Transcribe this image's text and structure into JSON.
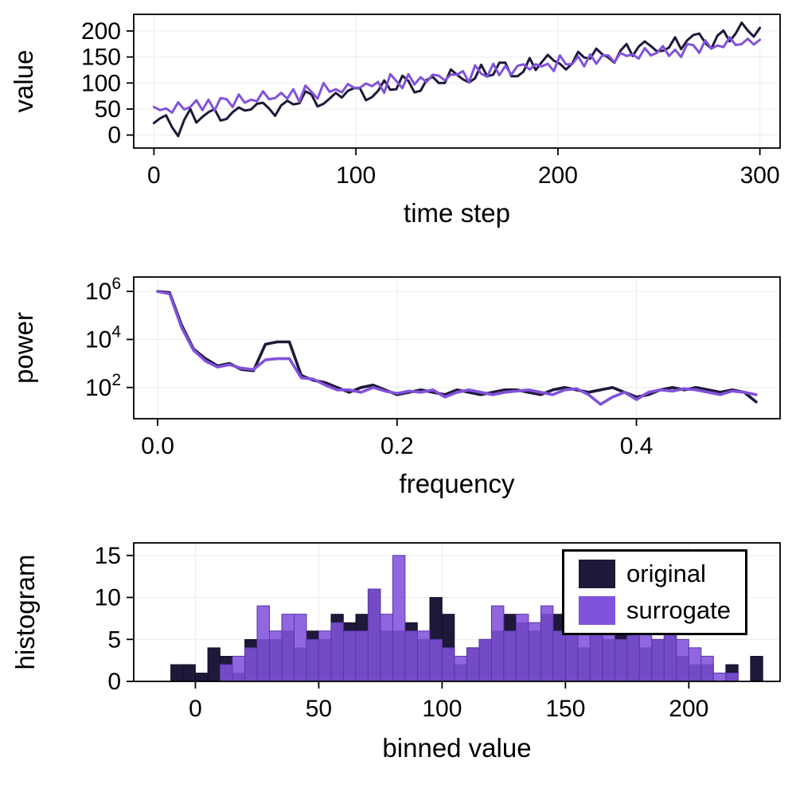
{
  "figure": {
    "background": "#ffffff"
  },
  "colors": {
    "original": "#1e1839",
    "surrogate": "#8152db",
    "frame": "#000000",
    "grid": "#ececec",
    "hist_stroke_original": "#0f0c22",
    "hist_stroke_surrogate": "#5a35a8"
  },
  "legend": {
    "position": "top-right",
    "items": [
      {
        "label": "original",
        "color_key": "original"
      },
      {
        "label": "surrogate",
        "color_key": "surrogate"
      }
    ]
  },
  "chart_data": [
    {
      "type": "line",
      "xlabel": "time step",
      "ylabel": "value",
      "x": {
        "start": 0,
        "step": 3,
        "count": 101
      },
      "xlim": [
        -10,
        310
      ],
      "ylim": [
        -25,
        232
      ],
      "x_ticks": {
        "values": [
          0,
          100,
          200,
          300
        ],
        "labels": [
          "0",
          "100",
          "200",
          "300"
        ]
      },
      "y_ticks": {
        "values": [
          0,
          50,
          100,
          150,
          200
        ],
        "labels": [
          "0",
          "50",
          "100",
          "150",
          "200"
        ]
      },
      "series": [
        {
          "name": "original",
          "values": [
            23,
            32,
            38,
            15,
            -2,
            29,
            50,
            24,
            35,
            44,
            50,
            28,
            31,
            44,
            53,
            47,
            49,
            60,
            62,
            51,
            37,
            57,
            66,
            59,
            61,
            84,
            78,
            55,
            60,
            70,
            81,
            72,
            85,
            90,
            90,
            67,
            73,
            85,
            105,
            87,
            88,
            114,
            104,
            82,
            85,
            106,
            112,
            100,
            100,
            126,
            116,
            107,
            101,
            109,
            135,
            113,
            116,
            139,
            139,
            113,
            113,
            122,
            148,
            125,
            140,
            154,
            143,
            137,
            126,
            137,
            160,
            149,
            147,
            166,
            155,
            149,
            139,
            162,
            175,
            152,
            170,
            180,
            171,
            161,
            162,
            168,
            188,
            165,
            182,
            192,
            195,
            177,
            166,
            191,
            201,
            180,
            195,
            216,
            201,
            189,
            206
          ]
        },
        {
          "name": "surrogate",
          "values": [
            54,
            48,
            51,
            43,
            63,
            49,
            54,
            67,
            48,
            68,
            47,
            71,
            69,
            54,
            78,
            62,
            68,
            65,
            84,
            69,
            71,
            81,
            70,
            88,
            64,
            95,
            83,
            70,
            100,
            83,
            88,
            82,
            98,
            91,
            91,
            99,
            94,
            102,
            81,
            117,
            104,
            90,
            117,
            97,
            111,
            102,
            116,
            114,
            105,
            116,
            116,
            123,
            101,
            134,
            118,
            112,
            137,
            115,
            133,
            116,
            133,
            136,
            126,
            136,
            132,
            137,
            123,
            153,
            136,
            136,
            151,
            132,
            155,
            137,
            153,
            153,
            140,
            158,
            152,
            155,
            147,
            167,
            153,
            158,
            171,
            152,
            164,
            150,
            175,
            173,
            158,
            182,
            166,
            172,
            169,
            188,
            173,
            175,
            185,
            174,
            183
          ]
        }
      ]
    },
    {
      "type": "line",
      "xlabel": "frequency",
      "ylabel": "power",
      "y_scale": "log10",
      "x": {
        "start": 0,
        "step": 0.01,
        "count": 51
      },
      "xlim": [
        -0.02,
        0.52
      ],
      "ylim_log10": [
        0.7,
        6.6
      ],
      "x_ticks": {
        "values": [
          0,
          0.2,
          0.4
        ],
        "labels": [
          "0.0",
          "0.2",
          "0.4"
        ]
      },
      "y_ticks": {
        "exponents": [
          2,
          4,
          6
        ]
      },
      "series": [
        {
          "name": "original",
          "log10_values": [
            6.0,
            5.95,
            4.6,
            3.6,
            3.2,
            2.9,
            3.0,
            2.75,
            2.7,
            3.8,
            3.9,
            3.9,
            2.5,
            2.3,
            2.2,
            2.0,
            1.8,
            2.0,
            2.1,
            1.9,
            1.7,
            1.8,
            1.9,
            1.8,
            1.7,
            1.9,
            1.8,
            1.7,
            1.8,
            1.9,
            1.9,
            1.8,
            1.7,
            1.9,
            2.0,
            1.9,
            1.8,
            1.9,
            2.0,
            1.8,
            1.6,
            1.7,
            1.9,
            2.0,
            1.9,
            2.0,
            1.9,
            1.8,
            1.9,
            1.8,
            1.4
          ]
        },
        {
          "name": "surrogate",
          "log10_values": [
            6.0,
            5.9,
            4.5,
            3.55,
            3.1,
            2.85,
            2.95,
            2.8,
            2.75,
            3.15,
            3.2,
            3.2,
            2.4,
            2.35,
            2.1,
            1.9,
            1.9,
            1.8,
            2.0,
            1.85,
            1.75,
            1.85,
            1.8,
            1.9,
            1.6,
            1.8,
            1.9,
            1.8,
            1.7,
            1.8,
            1.85,
            1.9,
            1.8,
            1.7,
            1.9,
            1.95,
            1.7,
            1.3,
            1.6,
            1.8,
            1.5,
            1.8,
            1.9,
            1.85,
            1.95,
            1.9,
            1.8,
            1.7,
            1.85,
            1.8,
            1.7
          ]
        }
      ]
    },
    {
      "type": "bar",
      "xlabel": "binned value",
      "ylabel": "histogram",
      "bin_start": -10,
      "bin_width": 5,
      "xlim": [
        -25,
        237
      ],
      "ylim": [
        0,
        16.5
      ],
      "x_ticks": {
        "values": [
          0,
          50,
          100,
          150,
          200
        ],
        "labels": [
          "0",
          "50",
          "100",
          "150",
          "200"
        ]
      },
      "y_ticks": {
        "values": [
          0,
          5,
          10,
          15
        ],
        "labels": [
          "0",
          "5",
          "10",
          "15"
        ]
      },
      "series": [
        {
          "name": "original",
          "counts": [
            2,
            2,
            1,
            4,
            3,
            1,
            5,
            5,
            5,
            6,
            4,
            6,
            5,
            8,
            7,
            8,
            11,
            6,
            6,
            7,
            5,
            10,
            8,
            2,
            4,
            5,
            6,
            8,
            7,
            6,
            8,
            8,
            12,
            4,
            6,
            5,
            7,
            6,
            4,
            5,
            6,
            3,
            2,
            2,
            0,
            2,
            0,
            3
          ]
        },
        {
          "name": "surrogate",
          "counts": [
            0,
            0,
            0,
            0,
            2,
            3,
            4,
            9,
            6,
            8,
            8,
            5,
            6,
            7,
            6,
            6,
            11,
            8,
            15,
            6,
            6,
            5,
            4,
            3,
            4,
            5,
            9,
            6,
            8,
            7,
            9,
            6,
            8,
            8,
            6,
            7,
            5,
            6,
            6,
            5,
            7,
            5,
            4,
            3,
            1,
            1,
            0,
            0
          ]
        }
      ]
    }
  ]
}
